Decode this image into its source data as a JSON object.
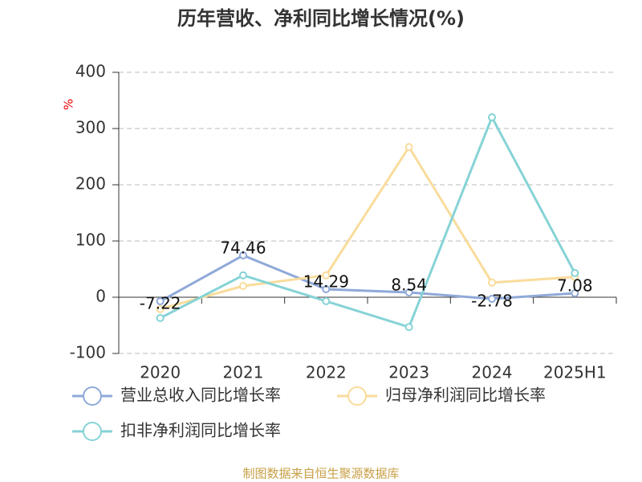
{
  "chart_data": {
    "type": "line",
    "title": "历年营收、净利同比增长情况(%)",
    "y_label": "%",
    "categories": [
      "2020",
      "2021",
      "2022",
      "2023",
      "2024",
      "2025H1"
    ],
    "series": [
      {
        "name": "营业总收入同比增长率",
        "color": "#8fa9d8",
        "values": [
          -7.22,
          74.46,
          14.29,
          8.54,
          -2.78,
          7.08
        ],
        "labels": true
      },
      {
        "name": "归母净利润同比增长率",
        "color": "#f9dc9c",
        "values": [
          -21,
          20,
          39,
          267,
          26,
          36
        ]
      },
      {
        "name": "扣非净利润同比增长率",
        "color": "#86d3d6",
        "values": [
          -37,
          39,
          -7,
          -53,
          320,
          43
        ]
      }
    ],
    "ylim": [
      -100,
      400
    ],
    "yticks": [
      -100,
      0,
      100,
      200,
      300,
      400
    ],
    "grid": true,
    "source": "制图数据来自恒生聚源数据库"
  }
}
